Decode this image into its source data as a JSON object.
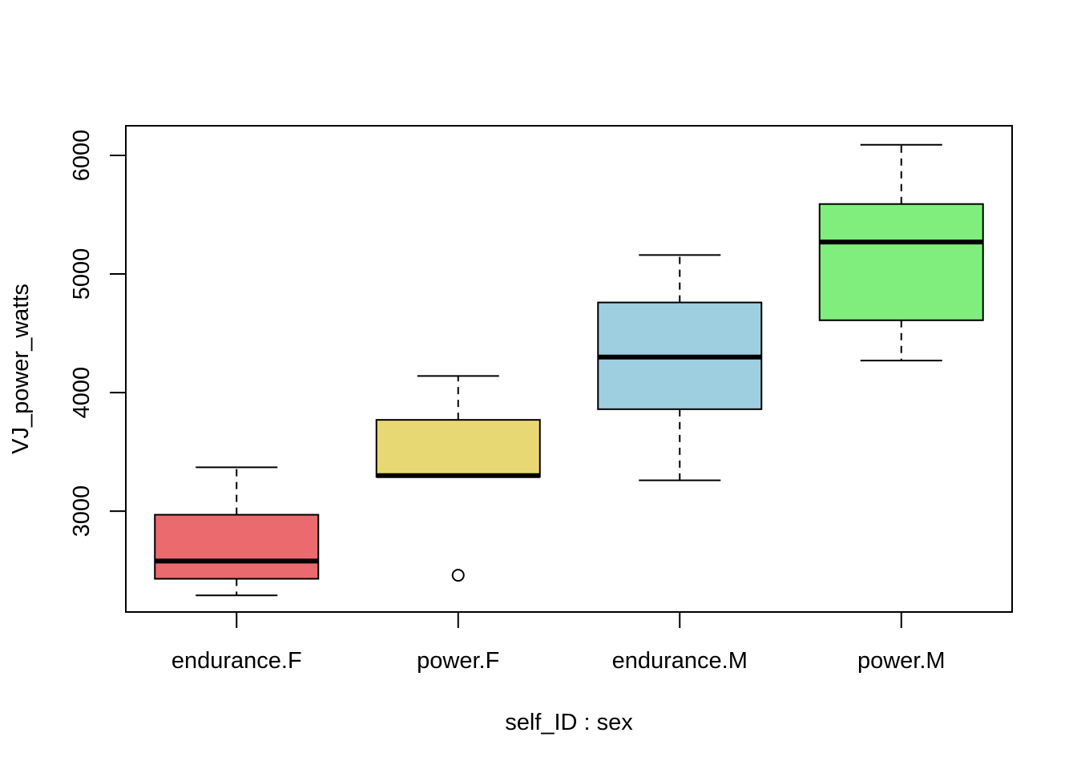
{
  "chart_data": {
    "type": "boxplot",
    "title": "",
    "xlabel": "self_ID : sex",
    "ylabel": "VJ_power_watts",
    "ylim": [
      2150,
      6250
    ],
    "yticks": [
      3000,
      4000,
      5000,
      6000
    ],
    "grid": false,
    "legend": "none",
    "categories": [
      "endurance.F",
      "power.F",
      "endurance.M",
      "power.M"
    ],
    "boxes": [
      {
        "category": "endurance.F",
        "lower_whisker": 2290,
        "q1": 2430,
        "median": 2580,
        "q3": 2970,
        "upper_whisker": 3370,
        "outliers": [],
        "color": "#EA6A6E"
      },
      {
        "category": "power.F",
        "lower_whisker": 3290,
        "q1": 3290,
        "median": 3300,
        "q3": 3770,
        "upper_whisker": 4140,
        "outliers": [
          2460
        ],
        "color": "#E8D874"
      },
      {
        "category": "endurance.M",
        "lower_whisker": 3260,
        "q1": 3860,
        "median": 4300,
        "q3": 4760,
        "upper_whisker": 5160,
        "outliers": [],
        "color": "#9ECFE0"
      },
      {
        "category": "power.M",
        "lower_whisker": 4270,
        "q1": 4610,
        "median": 5270,
        "q3": 5590,
        "upper_whisker": 6090,
        "outliers": [],
        "color": "#80EE7C"
      }
    ]
  }
}
